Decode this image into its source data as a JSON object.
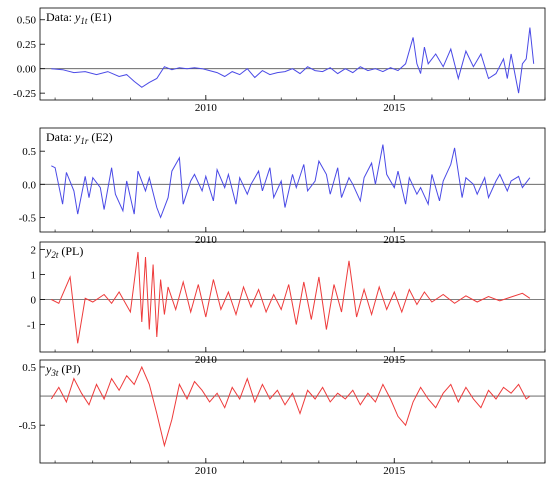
{
  "chart_data": [
    {
      "type": "line",
      "title_prefix": "Data: ",
      "title_var": "y",
      "title_sub": "1t",
      "title_suffix": " (E1)",
      "x_ticks": [
        "2010",
        "2015"
      ],
      "y_ticks": [
        "0.50",
        "0.25",
        "0.00",
        "-0.25"
      ],
      "y_tick_values": [
        0.5,
        0.25,
        0.0,
        -0.25
      ],
      "xlim": [
        2005.6,
        2019.0
      ],
      "ylim": [
        -0.32,
        0.62
      ],
      "color": "#4a4ae6",
      "x": [
        2005.9,
        2006.2,
        2006.5,
        2006.8,
        2007.1,
        2007.4,
        2007.7,
        2007.9,
        2008.1,
        2008.3,
        2008.5,
        2008.7,
        2008.9,
        2009.1,
        2009.3,
        2009.5,
        2009.7,
        2009.9,
        2010.1,
        2010.3,
        2010.5,
        2010.7,
        2010.9,
        2011.1,
        2011.3,
        2011.5,
        2011.7,
        2011.9,
        2012.1,
        2012.3,
        2012.5,
        2012.7,
        2012.9,
        2013.1,
        2013.3,
        2013.5,
        2013.7,
        2013.9,
        2014.1,
        2014.3,
        2014.5,
        2014.7,
        2014.9,
        2015.1,
        2015.3,
        2015.5,
        2015.6,
        2015.7,
        2015.8,
        2015.9,
        2016.1,
        2016.3,
        2016.5,
        2016.7,
        2016.9,
        2017.1,
        2017.3,
        2017.5,
        2017.7,
        2017.9,
        2018.0,
        2018.1,
        2018.3,
        2018.4,
        2018.5,
        2018.6,
        2018.7
      ],
      "y": [
        0.0,
        -0.01,
        -0.04,
        -0.03,
        -0.06,
        -0.03,
        -0.08,
        -0.06,
        -0.13,
        -0.19,
        -0.14,
        -0.1,
        0.02,
        -0.01,
        0.01,
        0.0,
        0.01,
        0.0,
        -0.02,
        -0.04,
        -0.08,
        -0.03,
        -0.06,
        0.0,
        -0.09,
        -0.02,
        -0.06,
        -0.04,
        -0.03,
        0.0,
        -0.05,
        0.02,
        -0.02,
        -0.03,
        0.01,
        -0.05,
        0.0,
        -0.04,
        0.02,
        -0.02,
        0.0,
        -0.03,
        0.01,
        -0.02,
        0.05,
        0.32,
        0.05,
        -0.05,
        0.22,
        0.05,
        0.15,
        0.02,
        0.2,
        -0.1,
        0.18,
        0.02,
        0.15,
        -0.1,
        -0.05,
        0.1,
        -0.1,
        0.15,
        -0.25,
        0.05,
        0.1,
        0.42,
        0.05
      ]
    },
    {
      "type": "line",
      "title_prefix": "Data: ",
      "title_var": "y",
      "title_sub": "1r",
      "title_suffix": " (E2)",
      "x_ticks": [
        "2010",
        "2015"
      ],
      "y_ticks": [
        "0.5",
        "0.0",
        "-0.5"
      ],
      "y_tick_values": [
        0.5,
        0.0,
        -0.5
      ],
      "xlim": [
        2005.6,
        2019.0
      ],
      "ylim": [
        -0.72,
        0.85
      ],
      "color": "#4a4ae6",
      "x": [
        2005.9,
        2006.0,
        2006.2,
        2006.3,
        2006.5,
        2006.6,
        2006.8,
        2006.9,
        2007.0,
        2007.2,
        2007.3,
        2007.5,
        2007.6,
        2007.8,
        2007.9,
        2008.1,
        2008.2,
        2008.4,
        2008.5,
        2008.7,
        2008.8,
        2009.0,
        2009.1,
        2009.3,
        2009.4,
        2009.6,
        2009.7,
        2009.9,
        2010.0,
        2010.2,
        2010.3,
        2010.5,
        2010.6,
        2010.8,
        2010.9,
        2011.1,
        2011.2,
        2011.4,
        2011.5,
        2011.7,
        2011.8,
        2012.0,
        2012.1,
        2012.3,
        2012.4,
        2012.6,
        2012.7,
        2012.9,
        2013.0,
        2013.2,
        2013.3,
        2013.5,
        2013.6,
        2013.8,
        2013.9,
        2014.1,
        2014.2,
        2014.4,
        2014.5,
        2014.7,
        2014.8,
        2015.0,
        2015.1,
        2015.3,
        2015.4,
        2015.6,
        2015.7,
        2015.9,
        2016.0,
        2016.2,
        2016.3,
        2016.5,
        2016.6,
        2016.8,
        2016.9,
        2017.1,
        2017.2,
        2017.4,
        2017.5,
        2017.7,
        2017.8,
        2018.0,
        2018.1,
        2018.3,
        2018.4,
        2018.6
      ],
      "y": [
        0.28,
        0.25,
        -0.3,
        0.18,
        -0.1,
        -0.45,
        0.12,
        -0.2,
        0.1,
        -0.05,
        -0.38,
        0.25,
        -0.15,
        -0.4,
        0.05,
        -0.45,
        0.2,
        -0.1,
        0.1,
        -0.35,
        -0.5,
        -0.2,
        0.2,
        0.4,
        -0.3,
        0.05,
        0.15,
        -0.1,
        0.12,
        -0.25,
        0.22,
        -0.05,
        0.15,
        -0.3,
        0.1,
        -0.15,
        0.0,
        0.2,
        -0.1,
        0.25,
        -0.2,
        0.05,
        -0.35,
        0.15,
        -0.05,
        0.3,
        -0.1,
        0.05,
        0.35,
        0.15,
        -0.15,
        0.25,
        -0.2,
        0.1,
        0.0,
        -0.25,
        0.1,
        0.32,
        0.0,
        0.6,
        0.15,
        -0.05,
        0.2,
        -0.3,
        0.1,
        -0.15,
        -0.05,
        -0.3,
        0.15,
        -0.25,
        0.05,
        0.3,
        0.55,
        -0.2,
        0.1,
        0.0,
        -0.15,
        0.1,
        -0.2,
        0.05,
        0.15,
        -0.1,
        0.05,
        0.12,
        -0.05,
        0.1
      ]
    },
    {
      "type": "line",
      "title_prefix": "",
      "title_var": "y",
      "title_sub": "2t",
      "title_suffix": " (PL)",
      "x_ticks": [
        "2010",
        "2015"
      ],
      "y_ticks": [
        "2",
        "1",
        "0",
        "-1"
      ],
      "y_tick_values": [
        2,
        1,
        0,
        -1
      ],
      "xlim": [
        2005.6,
        2019.0
      ],
      "ylim": [
        -2.1,
        2.3
      ],
      "color": "#ee3b3b",
      "x": [
        2005.9,
        2006.1,
        2006.4,
        2006.6,
        2006.8,
        2007.0,
        2007.3,
        2007.5,
        2007.7,
        2008.0,
        2008.2,
        2008.3,
        2008.4,
        2008.5,
        2008.6,
        2008.7,
        2008.8,
        2008.9,
        2009.0,
        2009.2,
        2009.4,
        2009.6,
        2009.8,
        2010.0,
        2010.2,
        2010.4,
        2010.6,
        2010.8,
        2011.0,
        2011.2,
        2011.4,
        2011.6,
        2011.8,
        2012.0,
        2012.2,
        2012.4,
        2012.6,
        2012.8,
        2013.0,
        2013.2,
        2013.4,
        2013.6,
        2013.8,
        2014.0,
        2014.2,
        2014.4,
        2014.6,
        2014.8,
        2015.0,
        2015.2,
        2015.4,
        2015.6,
        2015.8,
        2016.0,
        2016.3,
        2016.6,
        2016.9,
        2017.2,
        2017.5,
        2017.8,
        2018.1,
        2018.4,
        2018.6
      ],
      "y": [
        0.0,
        -0.15,
        0.9,
        -1.75,
        0.05,
        -0.1,
        0.2,
        -0.15,
        0.3,
        -0.5,
        1.9,
        -0.9,
        1.7,
        -1.2,
        1.4,
        -1.5,
        0.8,
        -0.6,
        0.5,
        -0.4,
        0.7,
        -0.5,
        0.6,
        -0.7,
        0.8,
        -0.4,
        0.3,
        -0.6,
        0.5,
        -0.3,
        0.4,
        -0.5,
        0.2,
        -0.4,
        0.6,
        -1.0,
        0.7,
        -0.8,
        0.9,
        -1.2,
        0.6,
        -0.5,
        1.55,
        -0.7,
        0.4,
        -0.6,
        0.5,
        -0.4,
        0.3,
        -0.5,
        0.4,
        -0.2,
        0.3,
        -0.1,
        0.2,
        -0.15,
        0.15,
        -0.1,
        0.12,
        -0.05,
        0.1,
        0.25,
        0.05
      ]
    },
    {
      "type": "line",
      "title_prefix": "",
      "title_var": "y",
      "title_sub": "3t",
      "title_suffix": " (PJ)",
      "x_ticks": [
        "2010",
        "2015"
      ],
      "y_ticks": [
        "0.5",
        "-0.5"
      ],
      "y_tick_values": [
        0.5,
        -0.5
      ],
      "xlim": [
        2005.6,
        2019.0
      ],
      "ylim": [
        -1.15,
        0.62
      ],
      "color": "#ee3b3b",
      "x": [
        2005.9,
        2006.1,
        2006.3,
        2006.5,
        2006.7,
        2006.9,
        2007.1,
        2007.3,
        2007.5,
        2007.7,
        2007.9,
        2008.1,
        2008.3,
        2008.5,
        2008.7,
        2008.9,
        2009.1,
        2009.3,
        2009.5,
        2009.7,
        2009.9,
        2010.1,
        2010.3,
        2010.5,
        2010.7,
        2010.9,
        2011.1,
        2011.3,
        2011.5,
        2011.7,
        2011.9,
        2012.1,
        2012.3,
        2012.5,
        2012.7,
        2012.9,
        2013.1,
        2013.3,
        2013.5,
        2013.7,
        2013.9,
        2014.1,
        2014.3,
        2014.5,
        2014.7,
        2014.9,
        2015.1,
        2015.3,
        2015.5,
        2015.7,
        2015.9,
        2016.1,
        2016.3,
        2016.5,
        2016.7,
        2016.9,
        2017.1,
        2017.3,
        2017.5,
        2017.7,
        2017.9,
        2018.1,
        2018.3,
        2018.5,
        2018.6
      ],
      "y": [
        -0.05,
        0.15,
        -0.1,
        0.3,
        0.05,
        -0.15,
        0.2,
        -0.05,
        0.3,
        0.1,
        0.35,
        0.2,
        0.5,
        0.2,
        -0.3,
        -0.85,
        -0.4,
        0.2,
        -0.05,
        0.25,
        0.1,
        -0.1,
        0.05,
        -0.2,
        0.15,
        -0.05,
        0.3,
        -0.1,
        0.2,
        -0.05,
        0.1,
        -0.15,
        0.05,
        -0.3,
        0.1,
        -0.05,
        0.15,
        -0.1,
        0.05,
        -0.05,
        0.1,
        -0.15,
        0.05,
        -0.1,
        0.2,
        -0.05,
        -0.35,
        -0.5,
        -0.1,
        0.15,
        -0.05,
        -0.2,
        0.05,
        0.2,
        -0.1,
        0.15,
        -0.05,
        -0.2,
        0.1,
        -0.05,
        0.15,
        0.05,
        0.2,
        -0.05,
        0.0
      ]
    }
  ]
}
